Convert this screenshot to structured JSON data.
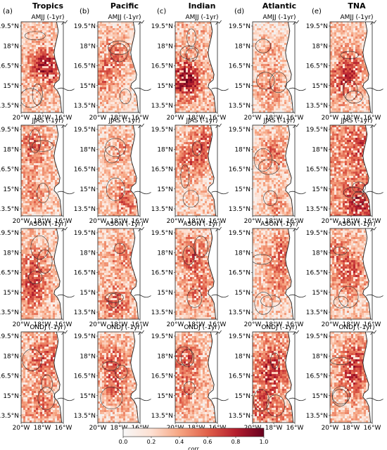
{
  "figure": {
    "columns": [
      {
        "letter": "(a)",
        "title": "Tropics"
      },
      {
        "letter": "(b)",
        "title": "Pacific"
      },
      {
        "letter": "(c)",
        "title": "Indian"
      },
      {
        "letter": "(d)",
        "title": "Atlantic"
      },
      {
        "letter": "(e)",
        "title": "TNA"
      }
    ],
    "rows": [
      {
        "season": "AMJJ (-1yr)"
      },
      {
        "season": "JJAS (-1yr)"
      },
      {
        "season": "ASON (-1yr)"
      },
      {
        "season": "ONDJ (-1yr)"
      }
    ],
    "lat_ticks": [
      "19.5°N",
      "18°N",
      "16.5°N",
      "15°N",
      "13.5°N"
    ],
    "lon_ticks": [
      "20°W",
      "18°W",
      "16°W"
    ],
    "colorbar": {
      "label": "corr",
      "ticks": [
        "0.0",
        "0.2",
        "0.4",
        "0.6",
        "0.8",
        "1.0"
      ],
      "range": [
        0,
        1
      ],
      "colors": [
        "#f7f7f7",
        "#fde0d2",
        "#f6a582",
        "#e0604a",
        "#b51f2e",
        "#67001f"
      ]
    },
    "land_color": "#ffffff",
    "ocean_base_color": "#f0f0f0",
    "coast_color": "#222222"
  }
}
